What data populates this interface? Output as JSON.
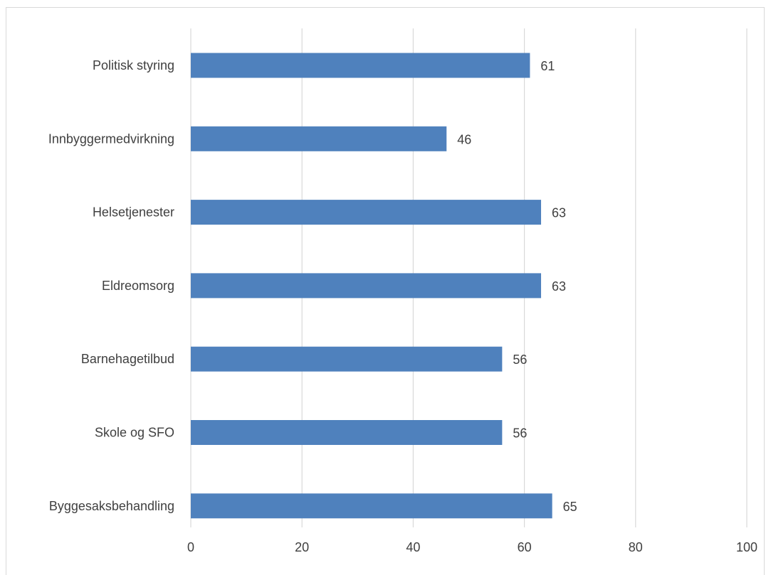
{
  "chart_data": {
    "type": "bar",
    "orientation": "horizontal",
    "title": "",
    "xlabel": "",
    "ylabel": "",
    "categories": [
      "Politisk styring",
      "Innbyggermedvirkning",
      "Helsetjenester",
      "Eldreomsorg",
      "Barnehagetilbud",
      "Skole og SFO",
      "Byggesaksbehandling"
    ],
    "values": [
      61,
      46,
      63,
      63,
      56,
      56,
      65
    ],
    "data_labels": [
      "61",
      "46",
      "63",
      "63",
      "56",
      "56",
      "65"
    ],
    "xlim": [
      0,
      100
    ],
    "x_ticks": [
      0,
      20,
      40,
      60,
      80,
      100
    ],
    "x_tick_labels": [
      "0",
      "20",
      "40",
      "60",
      "80",
      "100"
    ],
    "grid": true,
    "legend": "none",
    "bar_color": "#4f81bd",
    "grid_color": "#d9d9d9",
    "text_color": "#404040"
  }
}
